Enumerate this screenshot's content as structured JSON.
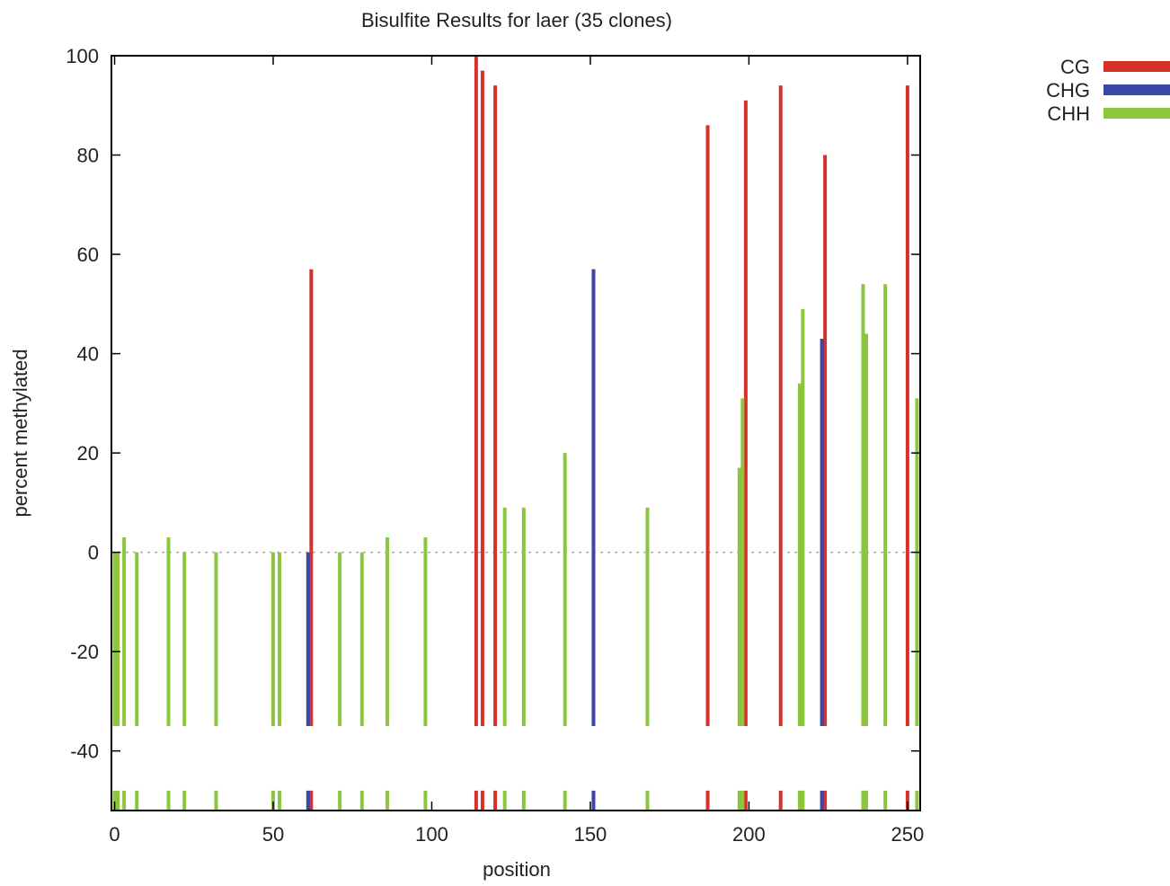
{
  "chart_data": {
    "type": "bar",
    "title": "Bisulfite Results for laer (35 clones)",
    "xlabel": "position",
    "ylabel": "percent methylated",
    "xlim": [
      -1,
      254
    ],
    "ylim": [
      -52,
      100
    ],
    "x_ticks": [
      "0",
      "50",
      "100",
      "150",
      "200",
      "250"
    ],
    "y_ticks": [
      "100",
      "80",
      "60",
      "40",
      "20",
      "0",
      "-20",
      "-40"
    ],
    "zero_line": "dotted",
    "legend_position": "top-right outside",
    "legend": [
      "CG",
      "CHG",
      "CHH"
    ],
    "colors": {
      "CG": "#d7312a",
      "CHG": "#3b48a8",
      "CHH": "#8cc63f"
    },
    "baseline_band": {
      "top": -35,
      "bottom": -48
    },
    "series": [
      {
        "name": "CG",
        "x": [
          62,
          114,
          116,
          120,
          187,
          199,
          210,
          224,
          250
        ],
        "values": [
          57,
          100,
          97,
          94,
          86,
          91,
          94,
          80,
          94
        ]
      },
      {
        "name": "CHG",
        "x": [
          61,
          151,
          223
        ],
        "values": [
          0,
          57,
          43
        ]
      },
      {
        "name": "CHH",
        "x": [
          0,
          1,
          3,
          7,
          17,
          22,
          32,
          50,
          52,
          71,
          78,
          86,
          98,
          123,
          129,
          142,
          168,
          197,
          198,
          216,
          217,
          236,
          237,
          243,
          253
        ],
        "values": [
          0,
          0,
          3,
          0,
          3,
          0,
          0,
          0,
          0,
          0,
          0,
          3,
          3,
          9,
          9,
          20,
          9,
          17,
          31,
          34,
          49,
          54,
          44,
          54,
          31
        ]
      }
    ]
  }
}
